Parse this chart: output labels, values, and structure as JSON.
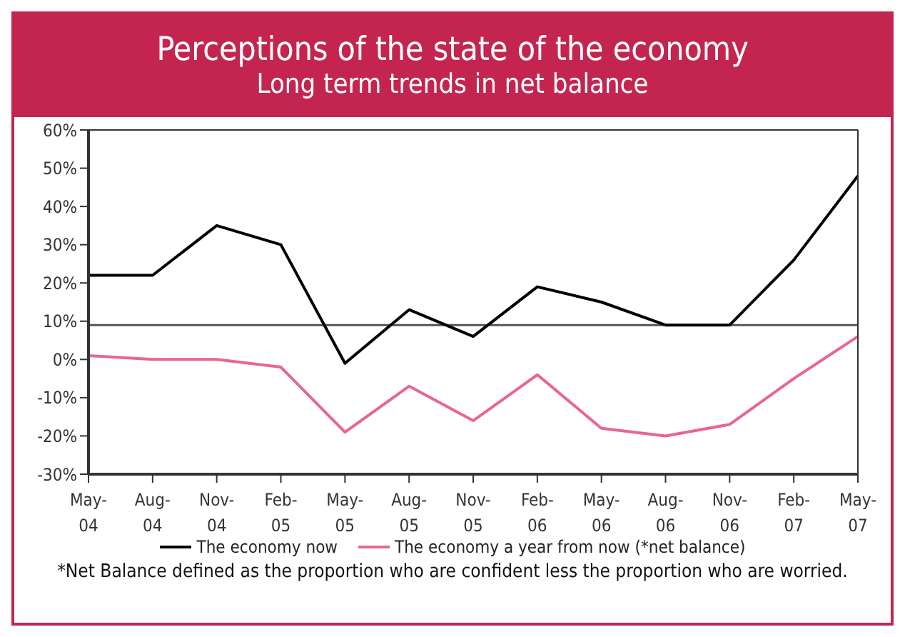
{
  "chart_data": {
    "type": "line",
    "title": "Perceptions of the state of the economy",
    "subtitle": "Long term trends in net balance",
    "categories": [
      "May-04",
      "Aug-04",
      "Nov-04",
      "Feb-05",
      "May-05",
      "Aug-05",
      "Nov-05",
      "Feb-06",
      "May-06",
      "Aug-06",
      "Nov-06",
      "Feb-07",
      "May-07"
    ],
    "series": [
      {
        "name": "The economy now",
        "color": "#000000",
        "values": [
          22,
          22,
          35,
          30,
          -1,
          13,
          6,
          19,
          15,
          9,
          9,
          26,
          48
        ]
      },
      {
        "name": "The economy a year from now (*net balance)",
        "color": "#e8668f",
        "values": [
          1,
          0,
          0,
          -2,
          -19,
          -7,
          -16,
          -4,
          -18,
          -20,
          -17,
          -5,
          6
        ]
      }
    ],
    "ylim": [
      -30,
      60
    ],
    "yticks": [
      {
        "value": -30,
        "label": "-30%"
      },
      {
        "value": -20,
        "label": "-20%"
      },
      {
        "value": -10,
        "label": "-10%"
      },
      {
        "value": 0,
        "label": "0%"
      },
      {
        "value": 10,
        "label": "10%"
      },
      {
        "value": 20,
        "label": "20%"
      },
      {
        "value": 30,
        "label": "30%"
      },
      {
        "value": 40,
        "label": "40%"
      },
      {
        "value": 50,
        "label": "50%"
      },
      {
        "value": 60,
        "label": "60%"
      }
    ],
    "ref_lines": [
      {
        "axis": "y",
        "value": 9,
        "color": "#555555"
      }
    ],
    "grid": false,
    "legend": "bottom",
    "marker": "none",
    "annotations": [
      "*Net Balance defined as the proportion who are confident less the proportion who are worried."
    ]
  }
}
